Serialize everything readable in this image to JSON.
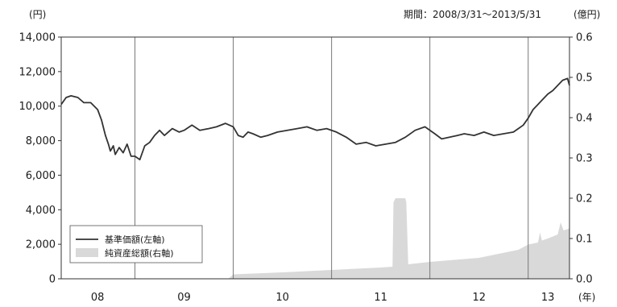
{
  "chart_data": {
    "type": "line",
    "title": "",
    "period_label": "期間：2008/3/31〜2013/5/31",
    "y_left_unit": "(円)",
    "y_right_unit": "(億円)",
    "x_unit": "(年)",
    "y_left": {
      "min": 0,
      "max": 14000,
      "ticks": [
        "0",
        "2,000",
        "4,000",
        "6,000",
        "8,000",
        "10,000",
        "12,000",
        "14,000"
      ]
    },
    "y_right": {
      "min": 0,
      "max": 0.6,
      "ticks": [
        "0.0",
        "0.1",
        "0.2",
        "0.3",
        "0.4",
        "0.5",
        "0.6"
      ]
    },
    "x_range": [
      2008.25,
      2013.42
    ],
    "year_ticks": [
      {
        "label": "08",
        "center": 2008.62
      },
      {
        "label": "09",
        "center": 2009.5
      },
      {
        "label": "10",
        "center": 2010.5
      },
      {
        "label": "11",
        "center": 2011.5
      },
      {
        "label": "12",
        "center": 2012.5
      },
      {
        "label": "13",
        "center": 2013.2
      }
    ],
    "year_boundaries": [
      2009.0,
      2010.0,
      2011.0,
      2012.0,
      2013.0
    ],
    "legend": {
      "position": "bottom-left"
    },
    "series": [
      {
        "name": "基準価額(左軸)",
        "axis": "left",
        "style": "line",
        "color": "#333333",
        "x": [
          2008.25,
          2008.3,
          2008.35,
          2008.42,
          2008.48,
          2008.55,
          2008.62,
          2008.66,
          2008.7,
          2008.73,
          2008.75,
          2008.78,
          2008.8,
          2008.84,
          2008.88,
          2008.92,
          2008.96,
          2009.0,
          2009.05,
          2009.1,
          2009.15,
          2009.2,
          2009.25,
          2009.3,
          2009.38,
          2009.45,
          2009.5,
          2009.58,
          2009.66,
          2009.75,
          2009.83,
          2009.92,
          2010.0,
          2010.05,
          2010.1,
          2010.15,
          2010.2,
          2010.28,
          2010.35,
          2010.45,
          2010.55,
          2010.65,
          2010.75,
          2010.85,
          2010.95,
          2011.05,
          2011.15,
          2011.25,
          2011.35,
          2011.45,
          2011.55,
          2011.65,
          2011.75,
          2011.85,
          2011.95,
          2012.05,
          2012.12,
          2012.2,
          2012.28,
          2012.35,
          2012.45,
          2012.55,
          2012.65,
          2012.75,
          2012.85,
          2012.9,
          2012.95,
          2013.0,
          2013.05,
          2013.1,
          2013.15,
          2013.2,
          2013.25,
          2013.3,
          2013.35,
          2013.4,
          2013.42
        ],
        "values": [
          10100,
          10500,
          10600,
          10500,
          10200,
          10200,
          9800,
          9200,
          8300,
          7800,
          7400,
          7700,
          7200,
          7600,
          7300,
          7800,
          7100,
          7100,
          6900,
          7700,
          7900,
          8300,
          8600,
          8300,
          8700,
          8500,
          8600,
          8900,
          8600,
          8700,
          8800,
          9000,
          8800,
          8300,
          8200,
          8500,
          8400,
          8200,
          8300,
          8500,
          8600,
          8700,
          8800,
          8600,
          8700,
          8500,
          8200,
          7800,
          7900,
          7700,
          7800,
          7900,
          8200,
          8600,
          8800,
          8400,
          8100,
          8200,
          8300,
          8400,
          8300,
          8500,
          8300,
          8400,
          8500,
          8700,
          8900,
          9300,
          9800,
          10100,
          10400,
          10700,
          10900,
          11200,
          11500,
          11600,
          11200
        ]
      },
      {
        "name": "純資産総額(右軸)",
        "axis": "right",
        "style": "area",
        "color": "#d9d9d9",
        "x": [
          2008.25,
          2009.95,
          2010.0,
          2010.5,
          2011.0,
          2011.5,
          2011.62,
          2011.63,
          2011.65,
          2011.75,
          2011.76,
          2011.78,
          2012.0,
          2012.5,
          2012.9,
          2013.0,
          2013.1,
          2013.12,
          2013.14,
          2013.2,
          2013.3,
          2013.33,
          2013.36,
          2013.42
        ],
        "values": [
          0,
          0,
          0.011,
          0.016,
          0.022,
          0.028,
          0.03,
          0.19,
          0.2,
          0.2,
          0.19,
          0.036,
          0.042,
          0.052,
          0.072,
          0.085,
          0.09,
          0.115,
          0.095,
          0.1,
          0.11,
          0.14,
          0.12,
          0.125
        ]
      }
    ]
  }
}
